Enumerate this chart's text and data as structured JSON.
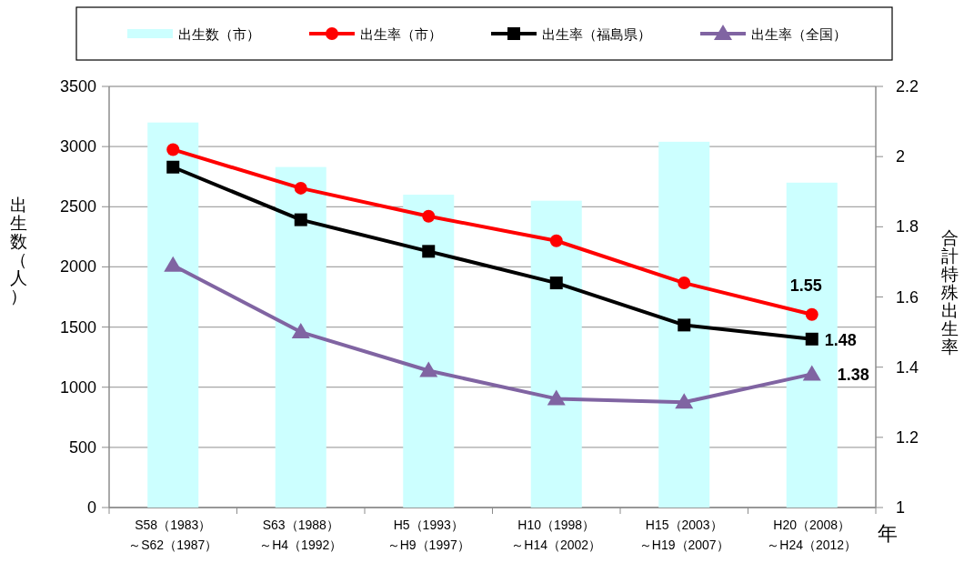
{
  "chart_data": {
    "type": "bar",
    "categories": [
      "S58（1983）～S62（1987）",
      "S63（1988）～H4（1992）",
      "H5（1993）～H9（1997）",
      "H10（1998）～H14（2002）",
      "H15（2003）～H19（2007）",
      "H20（2008）～H24（2012）"
    ],
    "series": [
      {
        "name": "出生数（市）",
        "color": "#ccffff",
        "values": [
          3200,
          2830,
          2600,
          2550,
          3040,
          2700
        ]
      },
      {
        "name": "出生率（市）",
        "type": "line",
        "axis": "y2",
        "color": "#ff0000",
        "marker": "circle",
        "values": [
          2.02,
          1.91,
          1.83,
          1.76,
          1.64,
          1.55
        ],
        "value_labels": [
          null,
          null,
          null,
          null,
          null,
          "1.55"
        ]
      },
      {
        "name": "出生率（福島県）",
        "type": "line",
        "axis": "y2",
        "color": "#000000",
        "marker": "square",
        "values": [
          1.97,
          1.82,
          1.73,
          1.64,
          1.52,
          1.48
        ],
        "value_labels": [
          null,
          null,
          null,
          null,
          null,
          "1.48"
        ]
      },
      {
        "name": "出生率（全国）",
        "type": "line",
        "axis": "y2",
        "color": "#8064a2",
        "marker": "triangle",
        "values": [
          1.69,
          1.5,
          1.39,
          1.31,
          1.3,
          1.38
        ],
        "value_labels": [
          null,
          null,
          null,
          null,
          null,
          "1.38"
        ]
      }
    ],
    "xlabel": "年",
    "ylabel": "出生数（人）",
    "y2label": "合計特殊出生率",
    "ylim": [
      0,
      3500
    ],
    "yticks": [
      0,
      500,
      1000,
      1500,
      2000,
      2500,
      3000,
      3500
    ],
    "y2lim": [
      1,
      2.2
    ],
    "y2ticks": [
      1,
      1.2,
      1.4,
      1.6,
      1.8,
      2,
      2.2
    ],
    "grid": "y",
    "legend": "top"
  }
}
